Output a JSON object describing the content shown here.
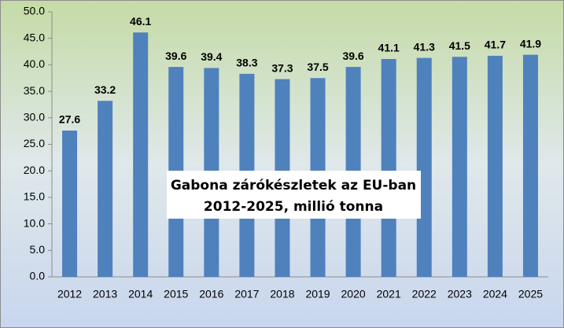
{
  "chart_data": {
    "type": "bar",
    "title": "Gabona zárókészletek az EU-ban",
    "subtitle": "2012-2025, millió tonna",
    "categories": [
      "2012",
      "2013",
      "2014",
      "2015",
      "2016",
      "2017",
      "2018",
      "2019",
      "2020",
      "2021",
      "2022",
      "2023",
      "2024",
      "2025"
    ],
    "values": [
      27.6,
      33.2,
      46.1,
      39.6,
      39.4,
      38.3,
      37.3,
      37.5,
      39.6,
      41.1,
      41.3,
      41.5,
      41.7,
      41.9
    ],
    "color": "#4f81bd",
    "ylim": [
      0,
      50
    ],
    "yticks": [
      {
        "value": 0,
        "label": "0.0"
      },
      {
        "value": 5,
        "label": "5.0"
      },
      {
        "value": 10,
        "label": "10.0"
      },
      {
        "value": 15,
        "label": "15.0"
      },
      {
        "value": 20,
        "label": "20.0"
      },
      {
        "value": 25,
        "label": "25.0"
      },
      {
        "value": 30,
        "label": "30.0"
      },
      {
        "value": 35,
        "label": "35.0"
      },
      {
        "value": 40,
        "label": "40.0"
      },
      {
        "value": 45,
        "label": "45.0"
      },
      {
        "value": 50,
        "label": "50.0"
      }
    ],
    "grid": false
  }
}
